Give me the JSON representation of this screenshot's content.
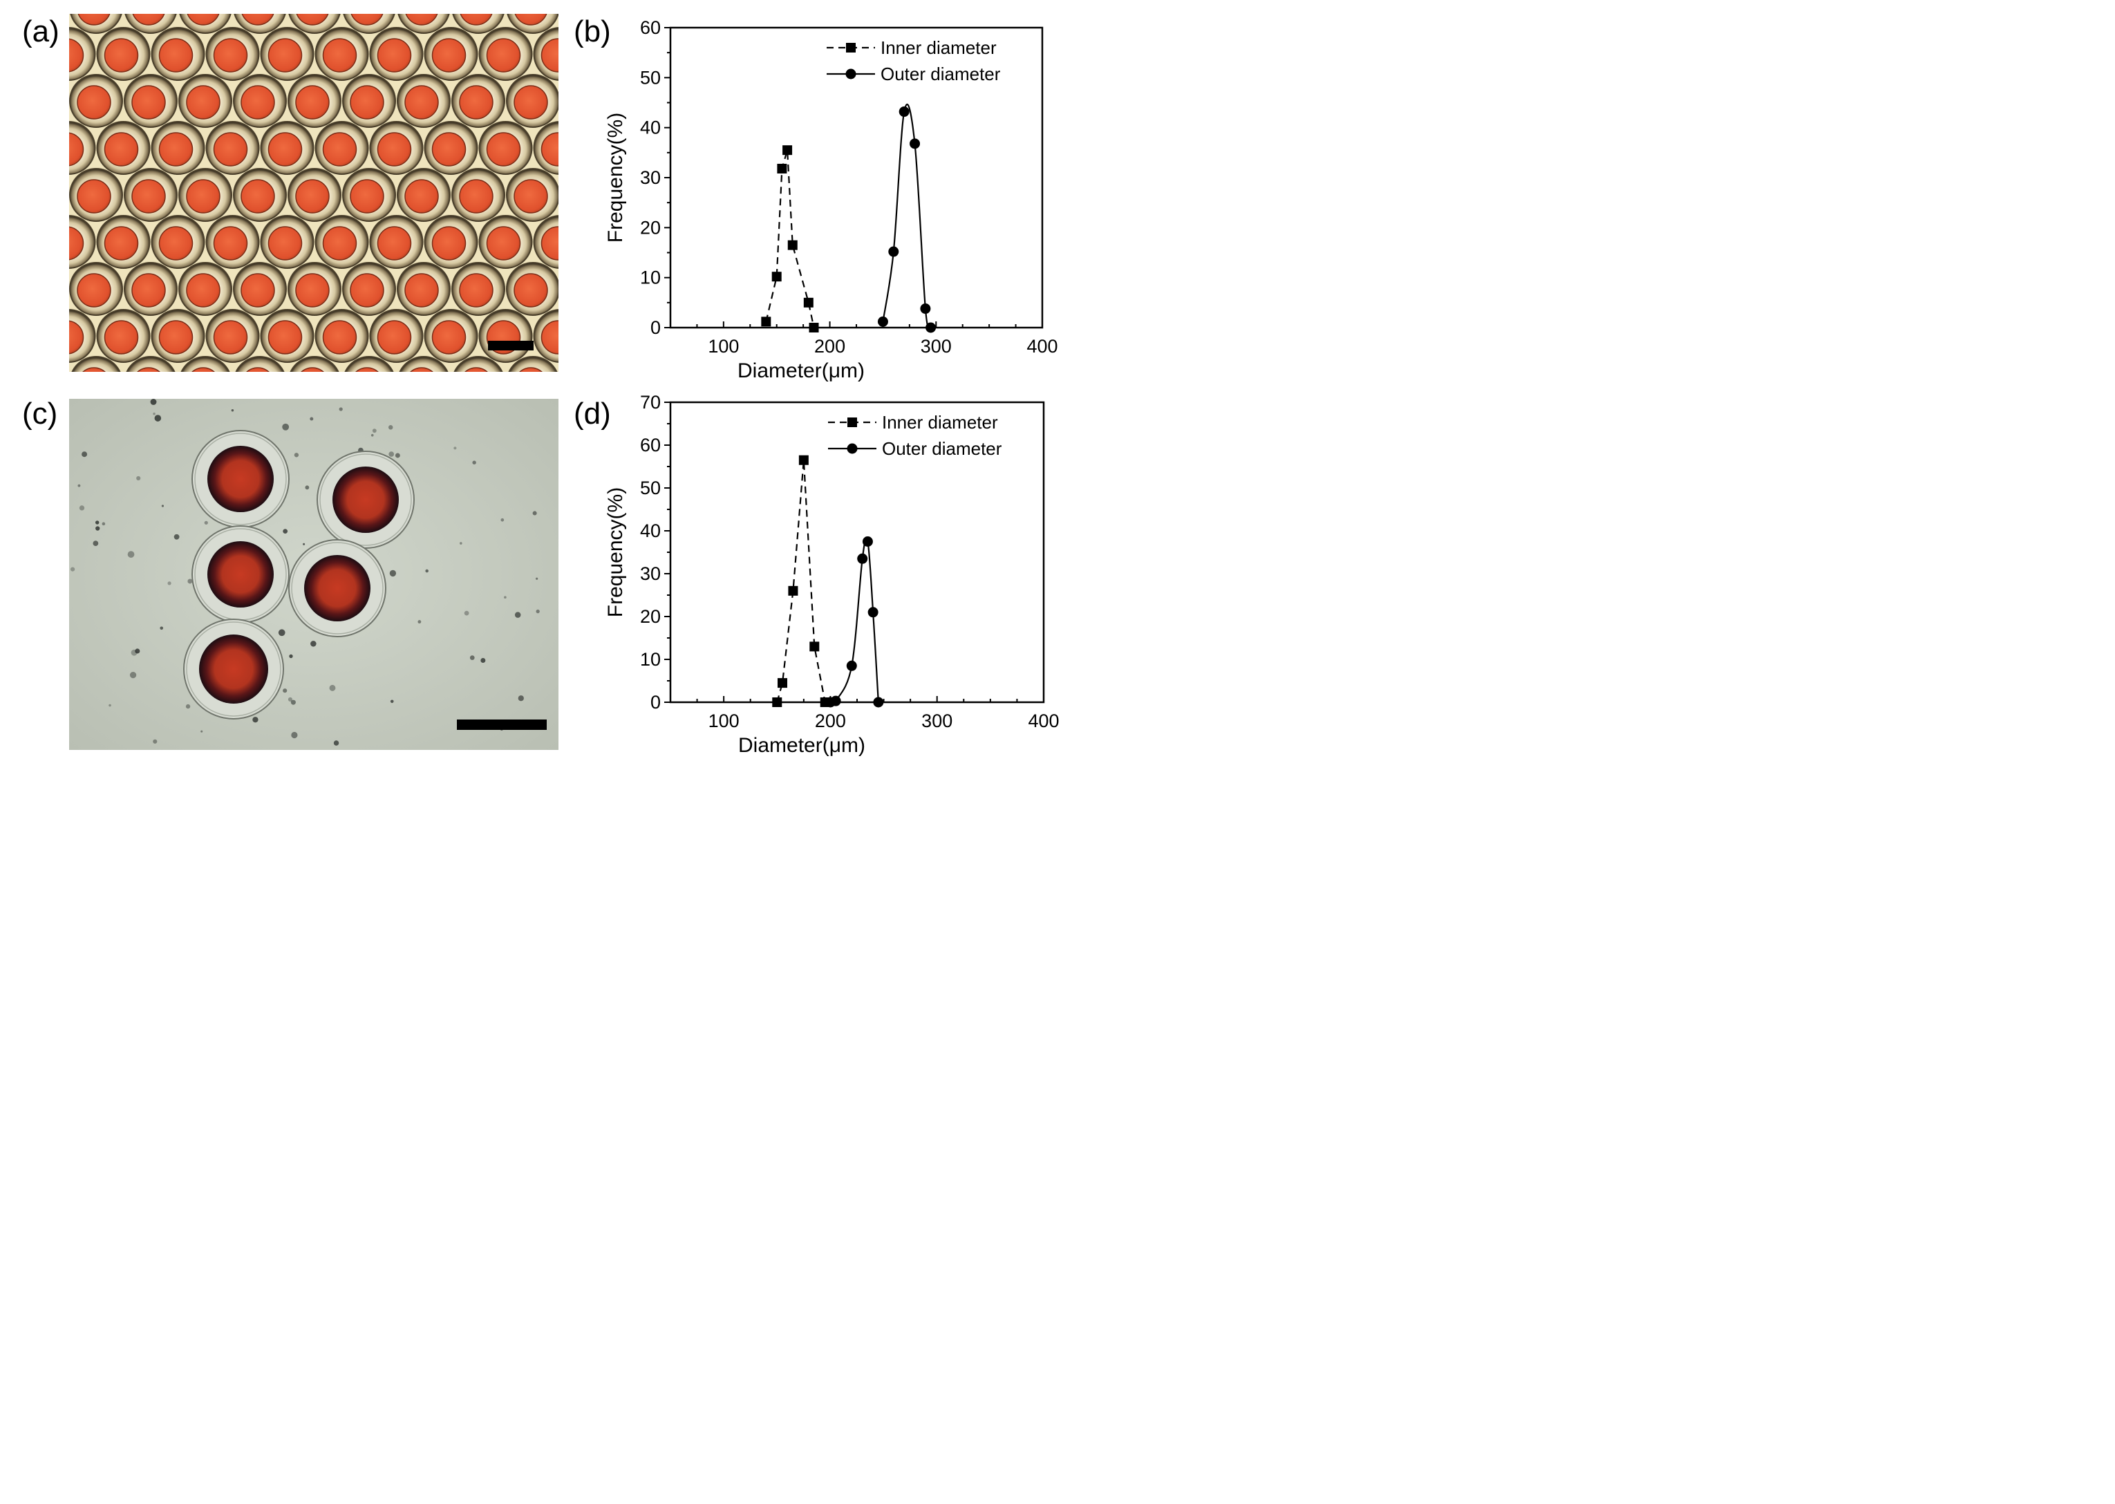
{
  "figure": {
    "panels": [
      {
        "id": "a",
        "label": "(a)"
      },
      {
        "id": "b",
        "label": "(b)"
      },
      {
        "id": "c",
        "label": "(c)"
      },
      {
        "id": "d",
        "label": "(d)"
      }
    ]
  },
  "colors": {
    "background_a": "#efe4bd",
    "droplet_core_a": "#e0512d",
    "shell_ring_a": "#8a7a5a",
    "background_c": "#c9cfc3",
    "droplet_core_c": "#b2341f",
    "droplet_rim_c": "#1c0c12",
    "scale_bar": "#000000",
    "plot_line": "#000000"
  },
  "chart_data": [
    {
      "panel": "b",
      "type": "line",
      "xlabel": "Diameter(μm)",
      "ylabel": "Frequency(%)",
      "xlim": [
        50,
        400
      ],
      "ylim": [
        0,
        60
      ],
      "xticks": [
        100,
        200,
        300,
        400
      ],
      "yticks": [
        0,
        10,
        20,
        30,
        40,
        50,
        60
      ],
      "legend_position": "top-right",
      "series": [
        {
          "name": "Inner diameter",
          "marker": "square",
          "line": "dashed",
          "x": [
            140,
            150,
            155,
            160,
            165,
            180,
            185
          ],
          "y": [
            1.2,
            10.2,
            31.8,
            35.5,
            16.5,
            5.0,
            0.0
          ]
        },
        {
          "name": "Outer diameter",
          "marker": "circle",
          "line": "solid",
          "x": [
            250,
            260,
            270,
            280,
            290,
            295
          ],
          "y": [
            1.2,
            15.2,
            43.2,
            36.8,
            3.8,
            0.0
          ]
        }
      ]
    },
    {
      "panel": "d",
      "type": "line",
      "xlabel": "Diameter(μm)",
      "ylabel": "Frequency(%)",
      "xlim": [
        50,
        400
      ],
      "ylim": [
        0,
        70
      ],
      "xticks": [
        100,
        200,
        300,
        400
      ],
      "yticks": [
        0,
        10,
        20,
        30,
        40,
        50,
        60,
        70
      ],
      "legend_position": "top-right",
      "series": [
        {
          "name": "Inner diameter",
          "marker": "square",
          "line": "dashed",
          "x": [
            150,
            155,
            165,
            175,
            185,
            195
          ],
          "y": [
            0.0,
            4.5,
            26.0,
            56.5,
            13.0,
            0.0
          ]
        },
        {
          "name": "Outer diameter",
          "marker": "circle",
          "line": "solid",
          "x": [
            200,
            205,
            220,
            230,
            235,
            240,
            245
          ],
          "y": [
            0.0,
            0.3,
            8.5,
            33.5,
            37.5,
            21.0,
            0.0
          ]
        }
      ]
    }
  ]
}
